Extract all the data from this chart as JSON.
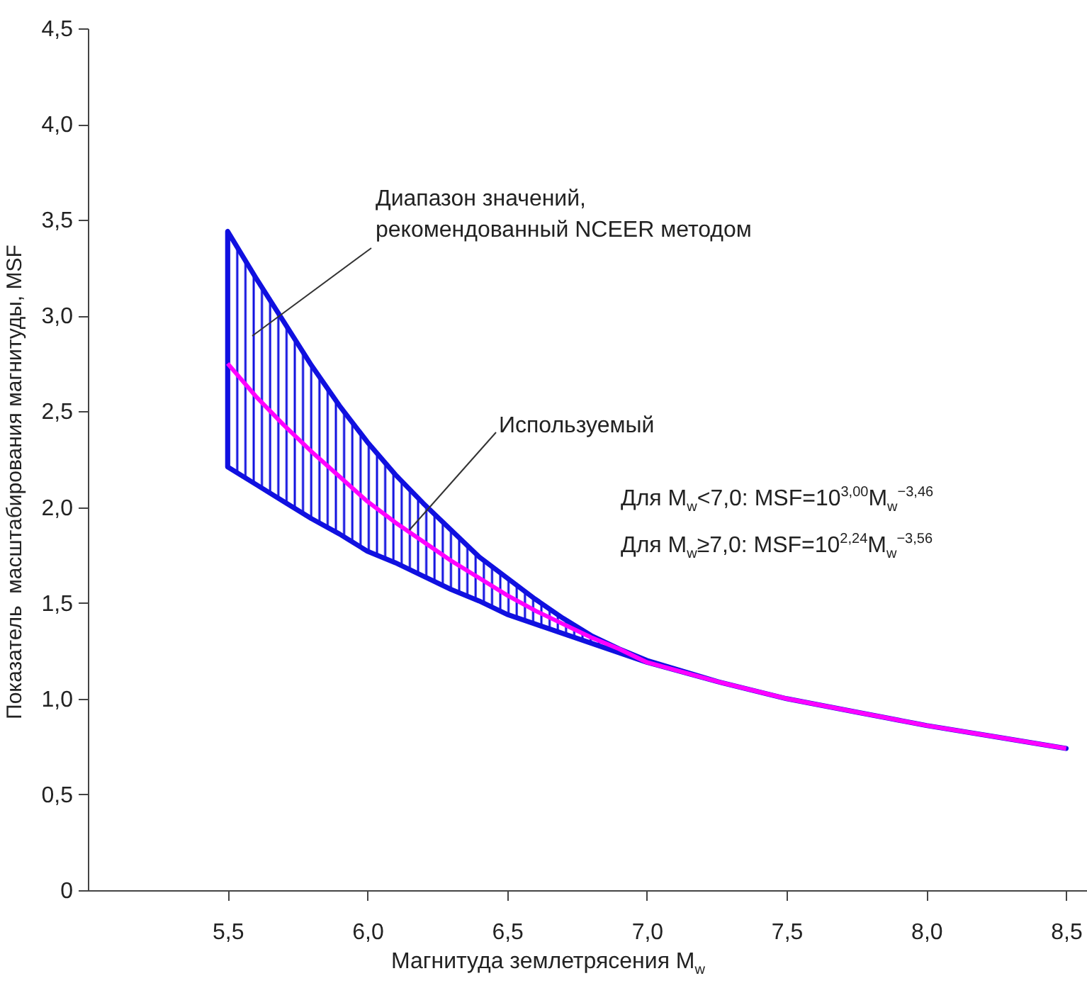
{
  "chart_data": {
    "type": "line",
    "xlabel": "Магнитуда землетрясения M$_{w}$",
    "ylabel": "Показатель  масштабирования магнитуды, MSF",
    "x": [
      5.5,
      5.6,
      5.7,
      5.8,
      5.9,
      6.0,
      6.1,
      6.2,
      6.3,
      6.4,
      6.5,
      6.6,
      6.7,
      6.8,
      6.9,
      7.0,
      7.25,
      7.5,
      7.75,
      8.0,
      8.25,
      8.5
    ],
    "series": [
      {
        "color": "#ff00ff",
        "values": [
          2.75,
          2.58,
          2.43,
          2.29,
          2.16,
          2.03,
          1.92,
          1.82,
          1.72,
          1.63,
          1.54,
          1.46,
          1.39,
          1.32,
          1.26,
          1.19,
          1.09,
          1.0,
          0.93,
          0.86,
          0.8,
          0.74
        ],
        "lower": [
          2.21,
          2.12,
          2.03,
          1.94,
          1.86,
          1.77,
          1.71,
          1.64,
          1.57,
          1.51,
          1.44,
          1.39,
          1.34,
          1.29,
          1.24,
          1.19,
          1.09,
          1.0,
          0.93,
          0.86,
          0.8,
          0.74
        ],
        "upper": [
          3.44,
          3.2,
          2.97,
          2.74,
          2.53,
          2.34,
          2.17,
          2.02,
          1.88,
          1.74,
          1.63,
          1.52,
          1.42,
          1.33,
          1.26,
          1.2,
          1.09,
          1.0,
          0.93,
          0.86,
          0.8,
          0.74
        ]
      }
    ],
    "xlim": [
      5.0,
      8.6
    ],
    "xticks": [
      {
        "value": 5.5,
        "label": "5,5"
      },
      {
        "value": 6.0,
        "label": "6,0"
      },
      {
        "value": 6.5,
        "label": "6,5"
      },
      {
        "value": 7.0,
        "label": "7,0"
      },
      {
        "value": 7.5,
        "label": "7,5"
      },
      {
        "value": 8.0,
        "label": "8,0"
      },
      {
        "value": 8.5,
        "label": "8,5"
      }
    ],
    "ylim": [
      0,
      4.5
    ],
    "yticks": [
      0,
      {
        "value": 0.5,
        "label": "0,5"
      },
      {
        "value": 1.0,
        "label": "1,0"
      },
      {
        "value": 1.5,
        "label": "1,5"
      },
      {
        "value": 2.0,
        "label": "2,0"
      },
      {
        "value": 2.5,
        "label": "2,5"
      },
      {
        "value": 3.0,
        "label": "3,0"
      },
      {
        "value": 3.5,
        "label": "3,5"
      },
      {
        "value": 4.0,
        "label": "4,0"
      },
      {
        "value": 4.5,
        "label": "4,5"
      }
    ],
    "annotations": [
      "Диапазон значений,\nрекомендованный NCEER методом",
      {
        "text": "Используемый",
        "x": 6.15,
        "y": 1.88
      },
      "Для M$_{w}$<7,0: MSF=10$^{3,00}$M$_{w}$$^{−3,46}$",
      "Для M$_{w}$≥7,0: MSF=10$^{2,24}$M$_{w}$$^{−3,56}$"
    ],
    "grid": false,
    "marker": "none",
    "line_style": "solid"
  }
}
